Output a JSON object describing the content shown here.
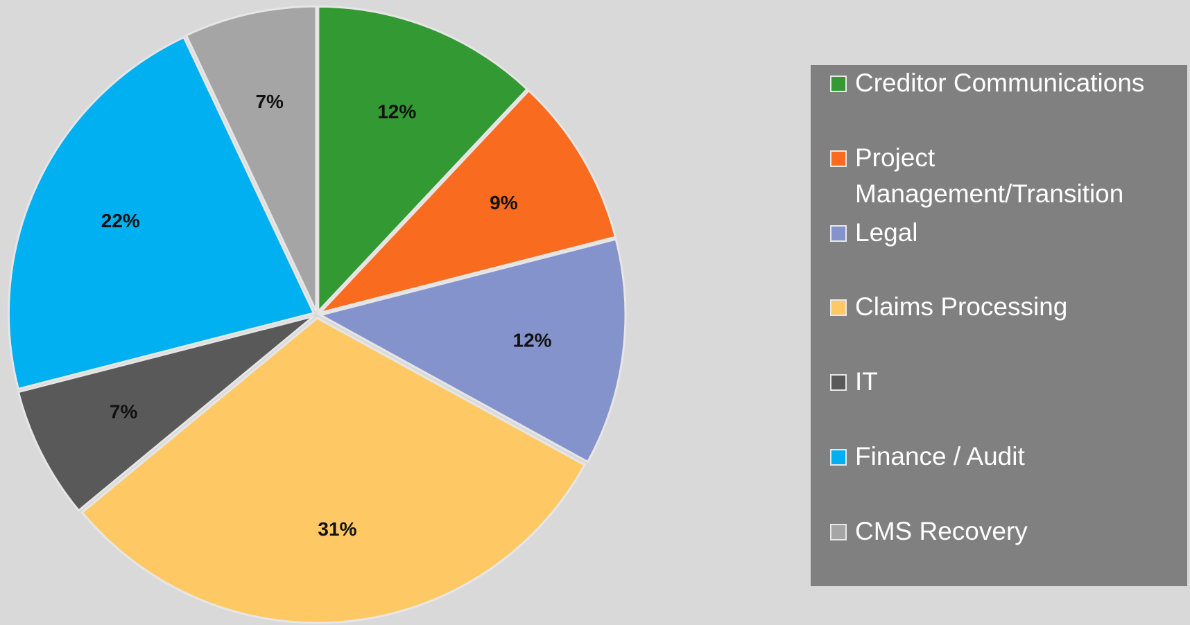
{
  "chart_data": {
    "type": "pie",
    "categories": [
      "Creditor Communications",
      "Project Management/Transition",
      "Legal",
      "Claims Processing",
      "IT",
      "Finance / Audit",
      "CMS Recovery"
    ],
    "values": [
      12,
      9,
      12,
      31,
      7,
      22,
      7
    ],
    "value_labels": [
      "12%",
      "9%",
      "12%",
      "31%",
      "7%",
      "22%",
      "7%"
    ],
    "colors": [
      "#339933",
      "#f96b1e",
      "#8593cd",
      "#fec965",
      "#595959",
      "#00b0f0",
      "#a5a5a5"
    ],
    "legend": "right"
  }
}
